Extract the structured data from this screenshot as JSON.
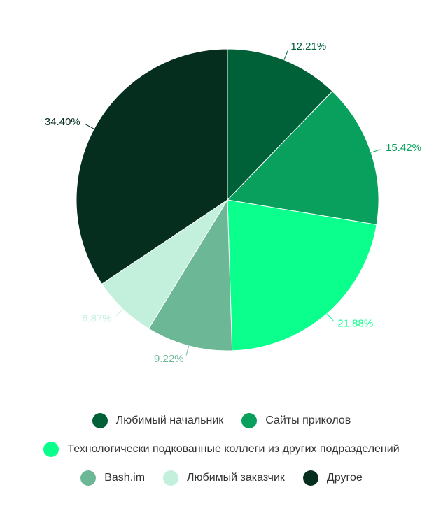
{
  "chart_data": {
    "type": "pie",
    "categories": [
      "Любимый начальник",
      "Сайты приколов",
      "Технологически подкованные коллеги из других подразделений",
      "Bash.im",
      "Любимый заказчик",
      "Другое"
    ],
    "values": [
      12.21,
      15.42,
      21.88,
      9.22,
      6.87,
      34.4
    ],
    "value_labels": [
      "12.21%",
      "15.42%",
      "21.88%",
      "9.22%",
      "6.87%",
      "34.40%"
    ],
    "colors": [
      "#006038",
      "#08a05c",
      "#0aff8c",
      "#6cb896",
      "#c2f0dc",
      "#062e1e"
    ]
  }
}
